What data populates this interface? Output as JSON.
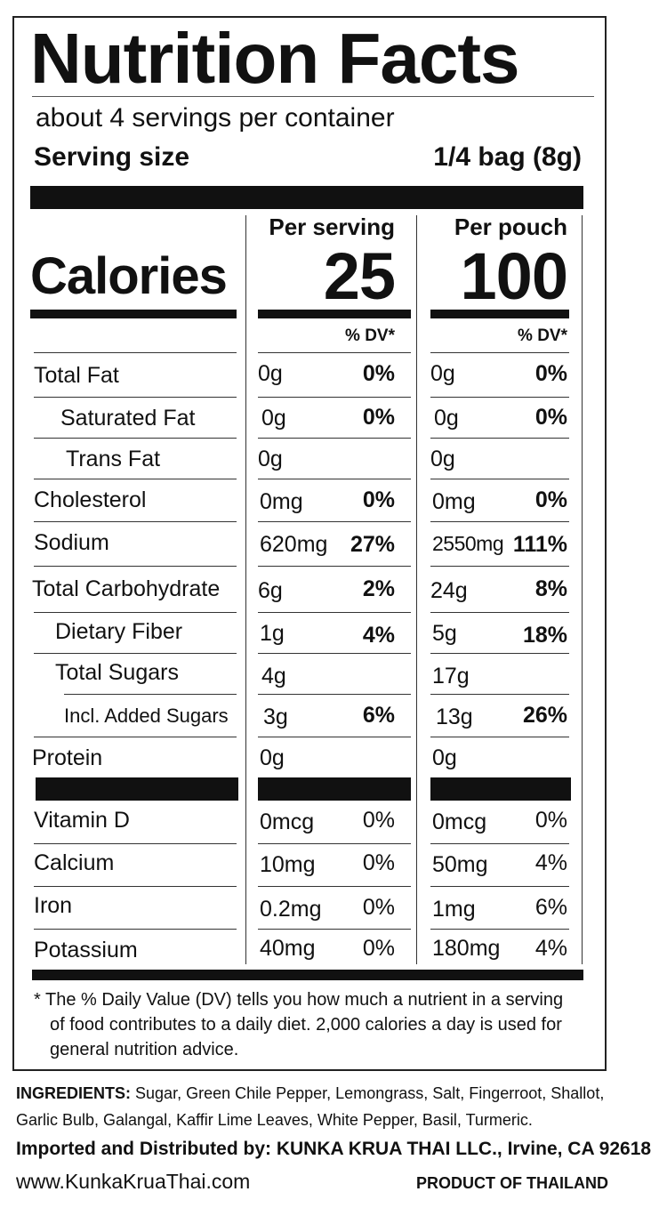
{
  "label": {
    "title": "Nutrition Facts",
    "servings_per_container": "about 4 servings per container",
    "serving_size_label": "Serving size",
    "serving_size_value": "1/4 bag (8g)",
    "calories_label": "Calories",
    "columns": [
      {
        "header": "Per serving",
        "calories": "25",
        "dv_header": "% DV*"
      },
      {
        "header": "Per pouch",
        "calories": "100",
        "dv_header": "% DV*"
      }
    ],
    "nutrients": [
      {
        "name": "Total Fat",
        "serving": {
          "amount": "0g",
          "dv": "0%"
        },
        "pouch": {
          "amount": "0g",
          "dv": "0%"
        }
      },
      {
        "name": "Saturated Fat",
        "serving": {
          "amount": "0g",
          "dv": "0%"
        },
        "pouch": {
          "amount": "0g",
          "dv": "0%"
        }
      },
      {
        "name": "Trans Fat",
        "serving": {
          "amount": "0g",
          "dv": ""
        },
        "pouch": {
          "amount": "0g",
          "dv": ""
        }
      },
      {
        "name": "Cholesterol",
        "serving": {
          "amount": "0mg",
          "dv": "0%"
        },
        "pouch": {
          "amount": "0mg",
          "dv": "0%"
        }
      },
      {
        "name": "Sodium",
        "serving": {
          "amount": "620mg",
          "dv": "27%"
        },
        "pouch": {
          "amount": "2550mg",
          "dv": "111%"
        }
      },
      {
        "name": "Total Carbohydrate",
        "serving": {
          "amount": "6g",
          "dv": "2%"
        },
        "pouch": {
          "amount": "24g",
          "dv": "8%"
        }
      },
      {
        "name": "Dietary Fiber",
        "serving": {
          "amount": "1g",
          "dv": "4%"
        },
        "pouch": {
          "amount": "5g",
          "dv": "18%"
        }
      },
      {
        "name": "Total Sugars",
        "serving": {
          "amount": "4g",
          "dv": ""
        },
        "pouch": {
          "amount": "17g",
          "dv": ""
        }
      },
      {
        "name": "Incl. Added Sugars",
        "serving": {
          "amount": "3g",
          "dv": "6%"
        },
        "pouch": {
          "amount": "13g",
          "dv": "26%"
        }
      },
      {
        "name": "Protein",
        "serving": {
          "amount": "0g",
          "dv": ""
        },
        "pouch": {
          "amount": "0g",
          "dv": ""
        }
      }
    ],
    "vitamins": [
      {
        "name": "Vitamin D",
        "serving": {
          "amount": "0mcg",
          "dv": "0%"
        },
        "pouch": {
          "amount": "0mcg",
          "dv": "0%"
        }
      },
      {
        "name": "Calcium",
        "serving": {
          "amount": "10mg",
          "dv": "0%"
        },
        "pouch": {
          "amount": "50mg",
          "dv": "4%"
        }
      },
      {
        "name": "Iron",
        "serving": {
          "amount": "0.2mg",
          "dv": "0%"
        },
        "pouch": {
          "amount": "1mg",
          "dv": "6%"
        }
      },
      {
        "name": "Potassium",
        "serving": {
          "amount": "40mg",
          "dv": "0%"
        },
        "pouch": {
          "amount": "180mg",
          "dv": "4%"
        }
      }
    ],
    "footnote": [
      "* The % Daily Value (DV) tells you how much a nutrient in a serving",
      "of food contributes to a daily diet. 2,000 calories a day is used for",
      "general nutrition advice."
    ]
  },
  "ingredients": {
    "label": "INGREDIENTS:",
    "line1": "Sugar, Green Chile Pepper, Lemongrass, Salt, Fingerroot, Shallot,",
    "line2": "Garlic Bulb, Galangal, Kaffir Lime Leaves, White Pepper, Basil, Turmeric."
  },
  "imported_by": "Imported and Distributed by: KUNKA KRUA THAI LLC., Irvine, CA 92618",
  "website": "www.KunkaKruaThai.com",
  "origin": "PRODUCT OF THAILAND"
}
